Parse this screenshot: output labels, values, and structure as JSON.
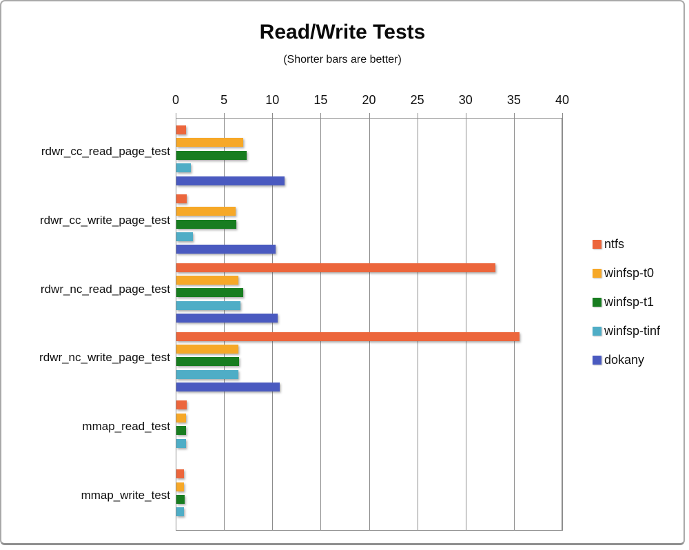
{
  "chart_data": {
    "type": "bar",
    "orientation": "horizontal",
    "title": "Read/Write Tests",
    "subtitle": "(Shorter bars are better)",
    "categories": [
      "rdwr_cc_read_page_test",
      "rdwr_cc_write_page_test",
      "rdwr_nc_read_page_test",
      "rdwr_nc_write_page_test",
      "mmap_read_test",
      "mmap_write_test"
    ],
    "series": [
      {
        "name": "ntfs",
        "color": "#EC663C",
        "values": [
          1.0,
          1.1,
          33.0,
          35.5,
          1.1,
          0.75
        ]
      },
      {
        "name": "winfsp-t0",
        "color": "#F6A828",
        "values": [
          6.9,
          6.1,
          6.4,
          6.4,
          1.0,
          0.8
        ]
      },
      {
        "name": "winfsp-t1",
        "color": "#187D20",
        "values": [
          7.3,
          6.2,
          6.9,
          6.5,
          1.0,
          0.85
        ]
      },
      {
        "name": "winfsp-tinf",
        "color": "#4FADC6",
        "values": [
          1.5,
          1.7,
          6.6,
          6.4,
          1.0,
          0.8
        ]
      },
      {
        "name": "dokany",
        "color": "#4A5AC0",
        "values": [
          11.2,
          10.3,
          10.5,
          10.7,
          null,
          null
        ]
      }
    ],
    "x_axis": {
      "position": "top",
      "min": 0,
      "max": 40,
      "ticks": [
        0,
        5,
        10,
        15,
        20,
        25,
        30,
        35,
        40
      ]
    },
    "grid": true,
    "gridline_color": "#8c8c8c",
    "legend_position": "right"
  }
}
